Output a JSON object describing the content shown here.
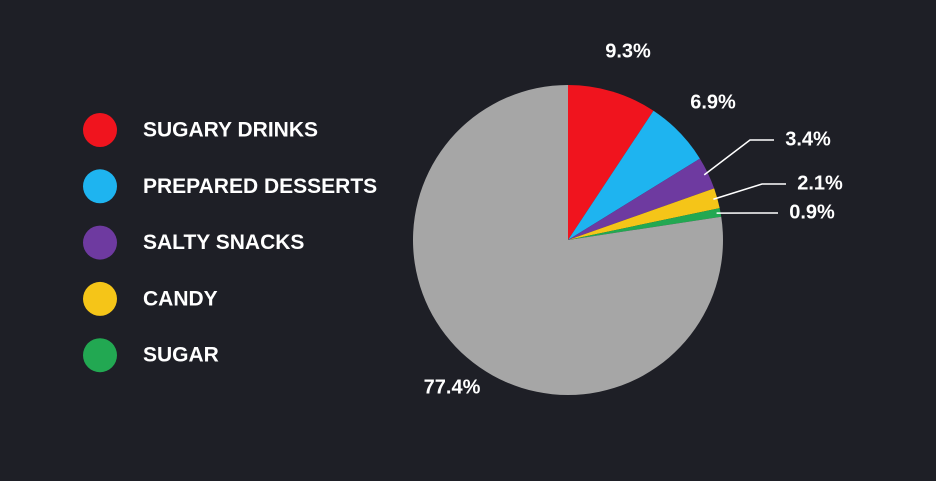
{
  "chart_data": {
    "type": "pie",
    "categories": [
      "SUGARY DRINKS",
      "PREPARED DESSERTS",
      "SALTY SNACKS",
      "CANDY",
      "SUGAR",
      null
    ],
    "values": [
      9.3,
      6.9,
      3.4,
      2.1,
      0.9,
      77.4
    ],
    "value_labels": [
      "9.3%",
      "6.9%",
      "3.4%",
      "2.1%",
      "0.9%",
      "77.4%"
    ],
    "colors": [
      "#f0141e",
      "#1eb4f0",
      "#6e3aa0",
      "#f5c518",
      "#22a852",
      "#a6a6a6"
    ],
    "legend": "left"
  }
}
